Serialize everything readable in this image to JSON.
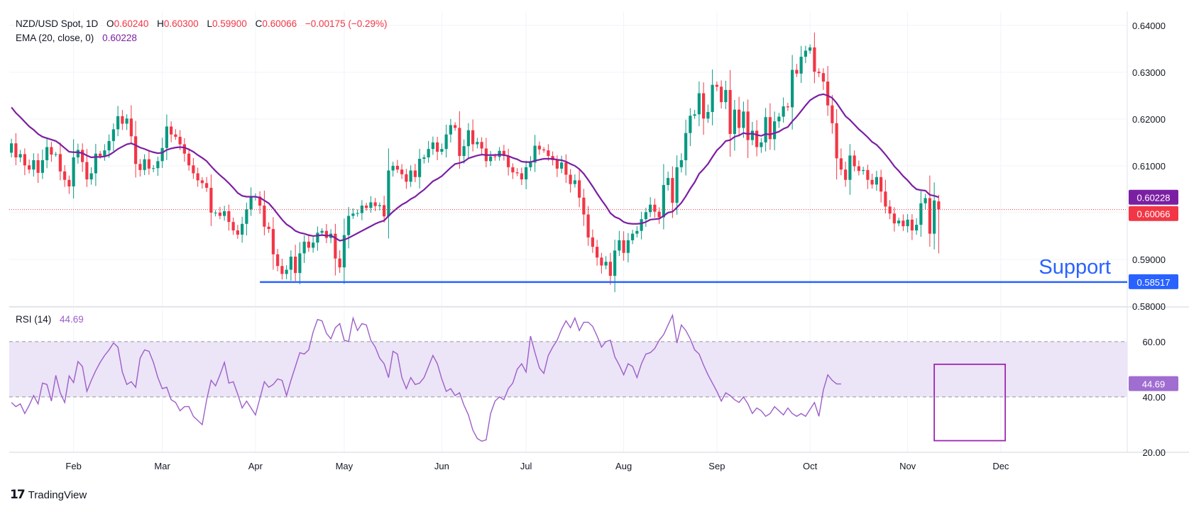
{
  "header": {
    "symbol": "NZD/USD Spot, 1D",
    "o_label": "O",
    "o_value": "0.60240",
    "h_label": "H",
    "h_value": "0.60300",
    "l_label": "L",
    "l_value": "0.59900",
    "c_label": "C",
    "c_value": "0.60066",
    "change": "−0.00175 (−0.29%)"
  },
  "ema_legend": {
    "label": "EMA (20, close, 0)",
    "value": "0.60228"
  },
  "rsi_legend": {
    "label": "RSI (14)",
    "value": "44.69"
  },
  "support_label": "Support",
  "brand": {
    "mark": "17",
    "name": "TradingView"
  },
  "colors": {
    "up": "#089981",
    "down": "#f23645",
    "ema": "#7b1fa2",
    "rsi": "#9c5fc8",
    "support": "#2962ff",
    "rsi_band": "#ece4f7",
    "grid": "#f0f3fa",
    "rsi_box": "#9c27b0"
  },
  "chart_data": [
    {
      "type": "candlestick",
      "title": "NZD/USD Spot, 1D",
      "ylim": [
        0.58,
        0.643
      ],
      "y_ticks": [
        "0.64000",
        "0.63000",
        "0.62000",
        "0.61000",
        "0.59000",
        "0.58000"
      ],
      "x_ticks": [
        {
          "label": "Feb",
          "i": 14
        },
        {
          "label": "Mar",
          "i": 34
        },
        {
          "label": "Apr",
          "i": 55
        },
        {
          "label": "May",
          "i": 75
        },
        {
          "label": "Jun",
          "i": 97
        },
        {
          "label": "Jul",
          "i": 116
        },
        {
          "label": "Aug",
          "i": 138
        },
        {
          "label": "Sep",
          "i": 159
        },
        {
          "label": "Oct",
          "i": 180
        },
        {
          "label": "Nov",
          "i": 202
        },
        {
          "label": "Dec",
          "i": 223
        }
      ],
      "n_slots": 241,
      "price_line": 0.60066,
      "price_tags": [
        {
          "text": "0.60228",
          "value": 0.60228,
          "color": "#7b1fa2"
        },
        {
          "text": "0.60066",
          "value": 0.60066,
          "color": "#f23645"
        }
      ],
      "support": {
        "value": 0.58517,
        "start_i": 56,
        "tag": "0.58517"
      },
      "close": [
        0.6148,
        0.6118,
        0.6125,
        0.6101,
        0.6092,
        0.6112,
        0.6085,
        0.6112,
        0.614,
        0.6124,
        0.6125,
        0.6088,
        0.607,
        0.6056,
        0.6118,
        0.6134,
        0.6108,
        0.6071,
        0.6084,
        0.6126,
        0.6121,
        0.6133,
        0.6153,
        0.6178,
        0.6206,
        0.619,
        0.6201,
        0.6163,
        0.6104,
        0.6091,
        0.6114,
        0.6094,
        0.6095,
        0.611,
        0.6138,
        0.6184,
        0.6167,
        0.6162,
        0.6146,
        0.6126,
        0.6101,
        0.6084,
        0.6069,
        0.6063,
        0.6053,
        0.6,
        0.6,
        0.5993,
        0.6003,
        0.598,
        0.5962,
        0.5953,
        0.5976,
        0.6007,
        0.6033,
        0.6034,
        0.6015,
        0.597,
        0.5965,
        0.5911,
        0.5886,
        0.5869,
        0.5878,
        0.5906,
        0.5871,
        0.5913,
        0.5938,
        0.5925,
        0.5936,
        0.5957,
        0.5961,
        0.5946,
        0.5955,
        0.5902,
        0.5883,
        0.5952,
        0.5993,
        0.5998,
        0.5999,
        0.6015,
        0.601,
        0.6022,
        0.6014,
        0.6016,
        0.5992,
        0.609,
        0.61,
        0.6092,
        0.6082,
        0.6066,
        0.609,
        0.6076,
        0.6115,
        0.6118,
        0.6136,
        0.615,
        0.613,
        0.6136,
        0.6167,
        0.6187,
        0.6181,
        0.6121,
        0.6142,
        0.6176,
        0.6146,
        0.6151,
        0.6137,
        0.611,
        0.612,
        0.6119,
        0.6132,
        0.6121,
        0.6097,
        0.6086,
        0.6084,
        0.6071,
        0.6097,
        0.6107,
        0.6143,
        0.6135,
        0.6133,
        0.6121,
        0.6112,
        0.6094,
        0.6107,
        0.6081,
        0.6061,
        0.6069,
        0.6032,
        0.5996,
        0.5947,
        0.5927,
        0.5904,
        0.5887,
        0.5895,
        0.5865,
        0.5919,
        0.5941,
        0.5914,
        0.5941,
        0.5955,
        0.5961,
        0.5986,
        0.6001,
        0.6017,
        0.6002,
        0.599,
        0.6059,
        0.6074,
        0.6021,
        0.6097,
        0.6112,
        0.617,
        0.6207,
        0.621,
        0.6255,
        0.6201,
        0.6215,
        0.6273,
        0.6269,
        0.6236,
        0.6262,
        0.6168,
        0.622,
        0.6181,
        0.6216,
        0.6155,
        0.6175,
        0.614,
        0.615,
        0.6204,
        0.6157,
        0.6195,
        0.6205,
        0.6227,
        0.6225,
        0.6305,
        0.6297,
        0.6333,
        0.6346,
        0.6353,
        0.6301,
        0.6298,
        0.628,
        0.6229,
        0.6191,
        0.6116,
        0.6092,
        0.607,
        0.6122,
        0.6099,
        0.6089,
        0.6091,
        0.607,
        0.606,
        0.6076,
        0.6045,
        0.6013,
        0.5998,
        0.5977,
        0.5983,
        0.5971,
        0.5985,
        0.5962,
        0.5974,
        0.602,
        0.6031,
        0.5955,
        0.6026,
        0.6007
      ],
      "ema": [
        0.6225,
        0.6213,
        0.6204,
        0.6194,
        0.6184,
        0.6177,
        0.6168,
        0.6162,
        0.6159,
        0.6156,
        0.6153,
        0.6146,
        0.6138,
        0.613,
        0.6129,
        0.6129,
        0.6127,
        0.6122,
        0.6118,
        0.6119,
        0.6119,
        0.612,
        0.6123,
        0.6129,
        0.6136,
        0.6141,
        0.6146,
        0.6148,
        0.6144,
        0.6139,
        0.6136,
        0.6132,
        0.6129,
        0.6127,
        0.6128,
        0.6134,
        0.6137,
        0.6139,
        0.614,
        0.6139,
        0.6135,
        0.613,
        0.6123,
        0.6117,
        0.611,
        0.6099,
        0.6089,
        0.608,
        0.6072,
        0.6063,
        0.6053,
        0.6042,
        0.6036,
        0.6034,
        0.6034,
        0.6034,
        0.6032,
        0.6026,
        0.602,
        0.6009,
        0.5997,
        0.5985,
        0.5975,
        0.5969,
        0.5961,
        0.5957,
        0.5955,
        0.5952,
        0.595,
        0.5951,
        0.5952,
        0.5951,
        0.5951,
        0.5946,
        0.594,
        0.5942,
        0.5946,
        0.5951,
        0.5956,
        0.5961,
        0.5966,
        0.5971,
        0.5976,
        0.598,
        0.5983,
        0.5993,
        0.6002,
        0.601,
        0.6017,
        0.6022,
        0.6029,
        0.6034,
        0.6042,
        0.6049,
        0.6058,
        0.6067,
        0.6072,
        0.6078,
        0.6087,
        0.6096,
        0.6104,
        0.6106,
        0.6109,
        0.6116,
        0.6119,
        0.6122,
        0.6124,
        0.6123,
        0.6123,
        0.6123,
        0.6124,
        0.6123,
        0.6121,
        0.6117,
        0.6114,
        0.6109,
        0.6108,
        0.6108,
        0.6111,
        0.6113,
        0.6115,
        0.6115,
        0.6115,
        0.6113,
        0.6112,
        0.6109,
        0.6104,
        0.61,
        0.6093,
        0.6083,
        0.607,
        0.6056,
        0.6041,
        0.6027,
        0.6014,
        0.5999,
        0.5991,
        0.5987,
        0.598,
        0.5977,
        0.5976,
        0.5976,
        0.5977,
        0.598,
        0.5985,
        0.5986,
        0.5987,
        0.5993,
        0.6,
        0.6002,
        0.6011,
        0.6021,
        0.6035,
        0.6051,
        0.6065,
        0.6083,
        0.6093,
        0.6104,
        0.6119,
        0.6133,
        0.6142,
        0.6153,
        0.6155,
        0.6162,
        0.6165,
        0.617,
        0.6168,
        0.6169,
        0.6166,
        0.6164,
        0.6168,
        0.6167,
        0.617,
        0.6173,
        0.6179,
        0.6183,
        0.6195,
        0.6205,
        0.6217,
        0.6229,
        0.624,
        0.6246,
        0.6251,
        0.6253,
        0.625,
        0.6245,
        0.6234,
        0.622,
        0.6206,
        0.6198,
        0.6188,
        0.6178,
        0.617,
        0.6161,
        0.6151,
        0.6145,
        0.6135,
        0.6124,
        0.6112,
        0.6099,
        0.6089,
        0.6078,
        0.6069,
        0.6058,
        0.605,
        0.6048,
        0.6047,
        0.6038,
        0.6036,
        0.6033
      ]
    },
    {
      "type": "line",
      "title": "RSI (14)",
      "ylim": [
        20,
        72
      ],
      "y_ticks": [
        "60.00",
        "40.00",
        "20.00"
      ],
      "band": [
        40,
        60
      ],
      "last_tag": "44.69",
      "highlight_box": {
        "start_i": 208,
        "end_i": 224,
        "y_top": 51.8,
        "y_bottom": 24.2
      },
      "values": [
        38.0,
        36.5,
        37.5,
        34.0,
        37.0,
        40.5,
        37.5,
        45.0,
        44.5,
        38.5,
        47.8,
        41.5,
        38.0,
        47.6,
        45.2,
        52.8,
        51.0,
        42.0,
        46.0,
        49.5,
        52.5,
        55.0,
        57.0,
        59.5,
        58.0,
        49.0,
        44.5,
        45.5,
        43.5,
        54.0,
        57.0,
        56.5,
        52.5,
        47.0,
        43.0,
        43.5,
        39.0,
        38.0,
        35.0,
        36.5,
        36.5,
        33.0,
        31.5,
        30.0,
        39.0,
        46.0,
        44.0,
        48.0,
        52.5,
        45.0,
        45.5,
        41.0,
        36.0,
        38.5,
        36.0,
        33.5,
        39.5,
        45.5,
        43.5,
        44.5,
        46.5,
        46.0,
        40.5,
        46.0,
        51.0,
        56.0,
        55.5,
        57.0,
        63.5,
        68.0,
        67.5,
        63.0,
        61.0,
        65.0,
        66.5,
        60.5,
        60.0,
        68.5,
        64.0,
        66.5,
        66.0,
        60.5,
        58.0,
        54.0,
        52.0,
        47.0,
        56.5,
        55.5,
        47.0,
        43.0,
        47.0,
        44.5,
        45.0,
        47.0,
        51.0,
        55.0,
        52.0,
        46.5,
        42.0,
        43.0,
        40.5,
        41.5,
        37.0,
        33.5,
        28.0,
        25.0,
        24.0,
        24.5,
        34.0,
        38.5,
        40.0,
        39.0,
        43.0,
        45.0,
        50.0,
        52.0,
        49.0,
        62.0,
        56.0,
        50.5,
        48.5,
        55.0,
        58.0,
        60.5,
        64.5,
        67.5,
        65.0,
        68.5,
        64.0,
        67.0,
        67.0,
        65.5,
        62.0,
        58.0,
        60.0,
        60.5,
        54.5,
        51.5,
        48.0,
        52.0,
        51.0,
        47.0,
        52.0,
        55.5,
        56.0,
        57.5,
        60.5,
        62.5,
        66.0,
        69.5,
        59.5,
        66.0,
        64.0,
        61.0,
        57.0,
        55.5,
        51.5,
        48.0,
        45.0,
        42.0,
        38.5,
        41.5,
        40.5,
        39.0,
        38.0,
        40.0,
        37.5,
        34.0,
        36.0,
        35.0,
        33.0,
        34.0,
        36.5,
        35.0,
        33.5,
        36.0,
        34.0,
        33.0,
        34.0,
        33.0,
        35.5,
        38.0,
        33.0,
        42.5,
        48.0,
        46.0,
        44.7,
        44.69
      ]
    }
  ]
}
